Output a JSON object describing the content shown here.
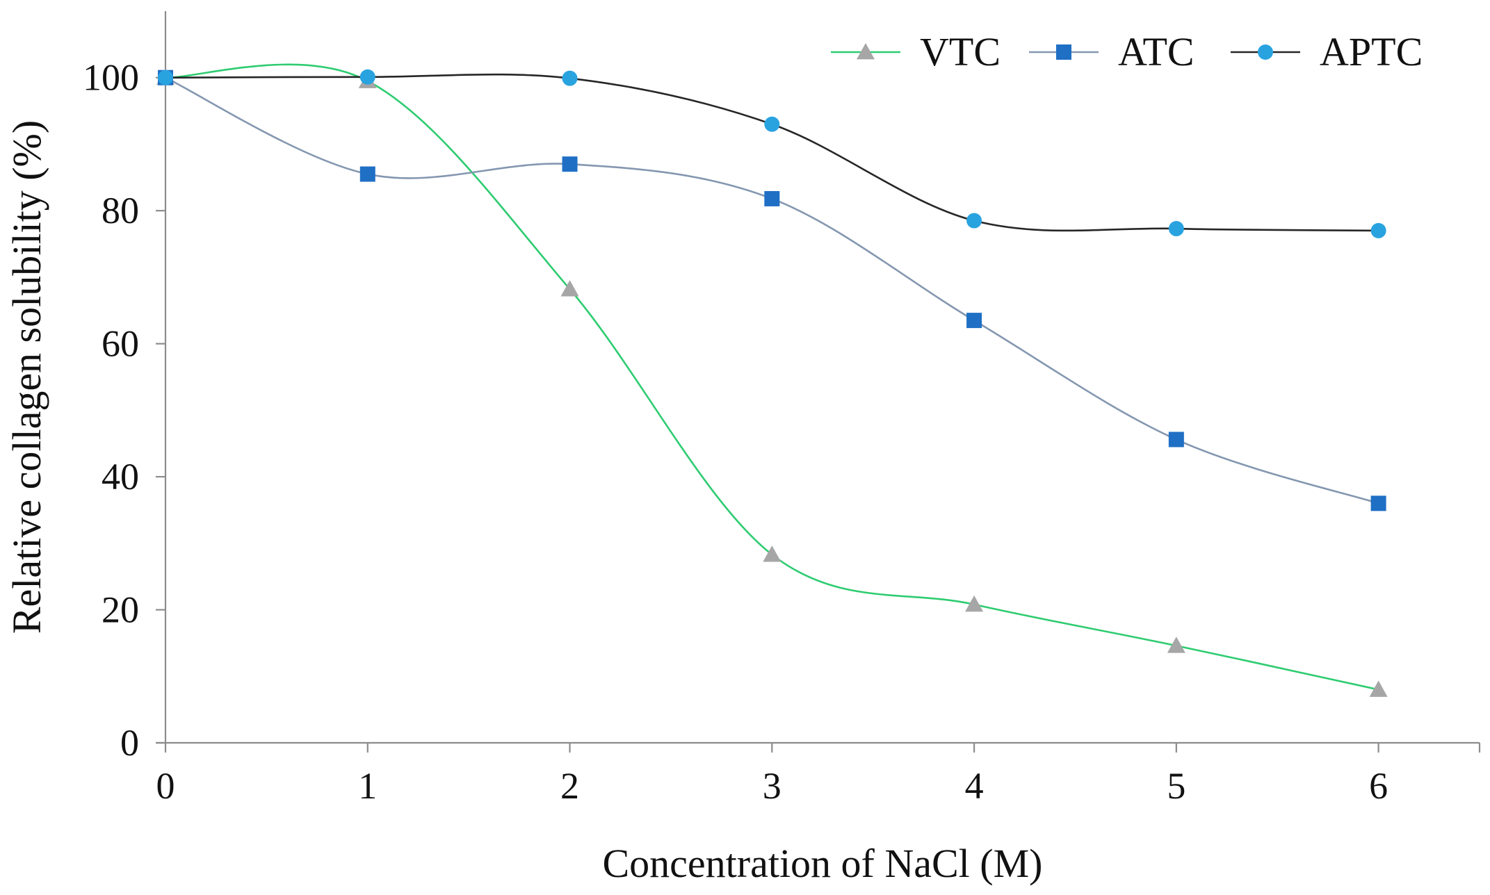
{
  "chart_data": {
    "type": "line",
    "title": "",
    "xlabel": "Concentration of NaCl (M)",
    "ylabel": "Relative collagen solubility (%)",
    "x": [
      0,
      1,
      2,
      3,
      4,
      5,
      6
    ],
    "xlim": [
      0,
      6.5
    ],
    "ylim": [
      0,
      110
    ],
    "xticks": [
      "0",
      "1",
      "2",
      "3",
      "4",
      "5",
      "6"
    ],
    "yticks": [
      "0",
      "20",
      "40",
      "60",
      "80",
      "100"
    ],
    "ytick_values": [
      0,
      20,
      40,
      60,
      80,
      100
    ],
    "grid": false,
    "legend_position": "top-right",
    "smooth": true,
    "series": [
      {
        "name": "VTC",
        "marker": "triangle",
        "line_color": "#2ECC71",
        "marker_color": "#A6A6A6",
        "values": [
          100,
          99.5,
          68.2,
          28.3,
          20.8,
          14.6,
          8
        ]
      },
      {
        "name": "ATC",
        "marker": "square",
        "line_color": "#8497B0",
        "marker_color": "#1F6FC5",
        "values": [
          100,
          85.5,
          87,
          81.8,
          63.5,
          45.6,
          36
        ]
      },
      {
        "name": "APTC",
        "marker": "circle",
        "line_color": "#262626",
        "marker_color": "#29A3E0",
        "values": [
          100,
          100.1,
          99.9,
          93,
          78.5,
          77.3,
          77
        ]
      }
    ]
  }
}
